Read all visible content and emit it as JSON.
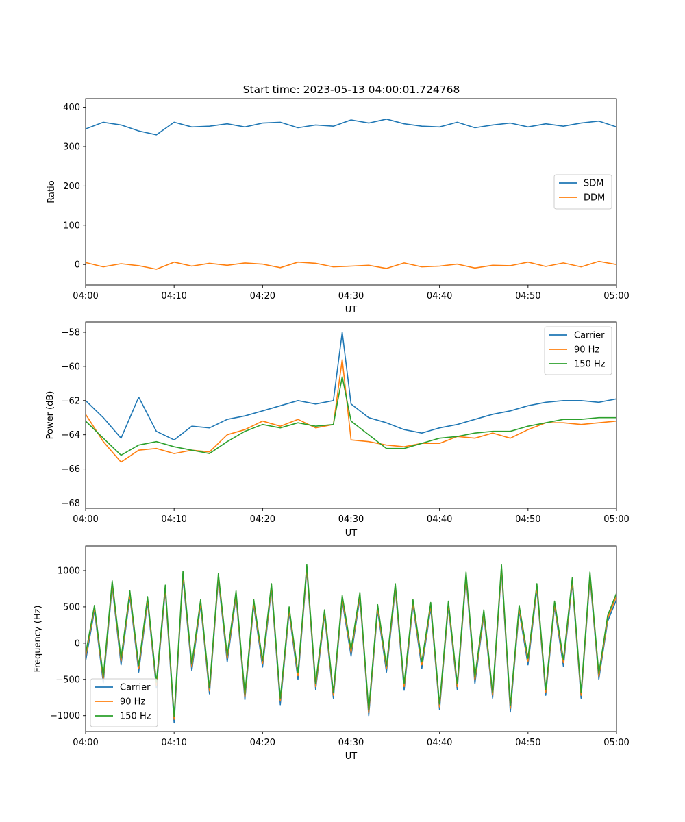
{
  "figure": {
    "title": "Start time: 2023-05-13 04:00:01.724768"
  },
  "colors": {
    "blue": "#1f77b4",
    "orange": "#ff7f0e",
    "green": "#2ca02c"
  },
  "chart_data": [
    {
      "type": "line",
      "title": "Start time: 2023-05-13 04:00:01.724768",
      "xlabel": "UT",
      "ylabel": "Ratio",
      "xlim": [
        "04:00",
        "05:00"
      ],
      "ylim": [
        -52,
        422
      ],
      "xticks": [
        "04:00",
        "04:10",
        "04:20",
        "04:30",
        "04:40",
        "04:50",
        "05:00"
      ],
      "yticks": [
        0,
        100,
        200,
        300,
        400
      ],
      "ytick_labels": [
        "0",
        "100",
        "200",
        "300",
        "400"
      ],
      "legend_position": "center-right",
      "x": [
        "04:00",
        "04:02",
        "04:04",
        "04:06",
        "04:08",
        "04:10",
        "04:12",
        "04:14",
        "04:16",
        "04:18",
        "04:20",
        "04:22",
        "04:24",
        "04:26",
        "04:28",
        "04:30",
        "04:32",
        "04:34",
        "04:36",
        "04:38",
        "04:40",
        "04:42",
        "04:44",
        "04:46",
        "04:48",
        "04:50",
        "04:52",
        "04:54",
        "04:56",
        "04:58",
        "05:00"
      ],
      "series": [
        {
          "name": "SDM",
          "color": "blue",
          "values": [
            345,
            362,
            355,
            340,
            330,
            362,
            350,
            352,
            358,
            350,
            360,
            362,
            348,
            355,
            352,
            368,
            360,
            370,
            358,
            352,
            350,
            362,
            348,
            355,
            360,
            350,
            358,
            352,
            360,
            365,
            350
          ]
        },
        {
          "name": "DDM",
          "color": "orange",
          "values": [
            5,
            -6,
            2,
            -3,
            -12,
            6,
            -4,
            3,
            -2,
            4,
            1,
            -8,
            6,
            3,
            -6,
            -4,
            -2,
            -10,
            4,
            -6,
            -4,
            1,
            -9,
            -2,
            -3,
            6,
            -5,
            4,
            -6,
            8,
            0
          ]
        }
      ]
    },
    {
      "type": "line",
      "xlabel": "UT",
      "ylabel": "Power (dB)",
      "xlim": [
        "04:00",
        "05:00"
      ],
      "ylim": [
        -68.3,
        -57.4
      ],
      "xticks": [
        "04:00",
        "04:10",
        "04:20",
        "04:30",
        "04:40",
        "04:50",
        "05:00"
      ],
      "yticks": [
        -68,
        -66,
        -64,
        -62,
        -60,
        -58
      ],
      "ytick_labels": [
        "−68",
        "−66",
        "−64",
        "−62",
        "−60",
        "−58"
      ],
      "legend_position": "upper-right",
      "x": [
        "04:00",
        "04:02",
        "04:04",
        "04:06",
        "04:08",
        "04:10",
        "04:12",
        "04:14",
        "04:16",
        "04:18",
        "04:20",
        "04:22",
        "04:24",
        "04:26",
        "04:28",
        "04:29",
        "04:30",
        "04:32",
        "04:34",
        "04:36",
        "04:38",
        "04:40",
        "04:42",
        "04:44",
        "04:46",
        "04:48",
        "04:50",
        "04:52",
        "04:54",
        "04:56",
        "04:58",
        "05:00"
      ],
      "series": [
        {
          "name": "Carrier",
          "color": "blue",
          "values": [
            -62.0,
            -63.0,
            -64.2,
            -61.8,
            -63.8,
            -64.3,
            -63.5,
            -63.6,
            -63.1,
            -62.9,
            -62.6,
            -62.3,
            -62.0,
            -62.2,
            -62.0,
            -58.0,
            -62.2,
            -63.0,
            -63.3,
            -63.7,
            -63.9,
            -63.6,
            -63.4,
            -63.1,
            -62.8,
            -62.6,
            -62.3,
            -62.1,
            -62.0,
            -62.0,
            -62.1,
            -61.9
          ]
        },
        {
          "name": "90 Hz",
          "color": "orange",
          "values": [
            -62.8,
            -64.4,
            -65.6,
            -64.9,
            -64.8,
            -65.1,
            -64.9,
            -65.0,
            -64.0,
            -63.7,
            -63.2,
            -63.5,
            -63.1,
            -63.6,
            -63.4,
            -59.6,
            -64.3,
            -64.4,
            -64.6,
            -64.7,
            -64.5,
            -64.5,
            -64.1,
            -64.2,
            -63.9,
            -64.2,
            -63.7,
            -63.3,
            -63.3,
            -63.4,
            -63.3,
            -63.2
          ]
        },
        {
          "name": "150 Hz",
          "color": "green",
          "values": [
            -63.2,
            -64.2,
            -65.2,
            -64.6,
            -64.4,
            -64.7,
            -64.9,
            -65.1,
            -64.4,
            -63.8,
            -63.4,
            -63.6,
            -63.3,
            -63.5,
            -63.4,
            -60.6,
            -63.2,
            -64.0,
            -64.8,
            -64.8,
            -64.5,
            -64.2,
            -64.1,
            -63.9,
            -63.8,
            -63.8,
            -63.5,
            -63.3,
            -63.1,
            -63.1,
            -63.0,
            -63.0
          ]
        }
      ]
    },
    {
      "type": "line",
      "xlabel": "UT",
      "ylabel": "Frequency (Hz)",
      "xlim": [
        "04:00",
        "05:00"
      ],
      "ylim": [
        -1220,
        1340
      ],
      "xticks": [
        "04:00",
        "04:10",
        "04:20",
        "04:30",
        "04:40",
        "04:50",
        "05:00"
      ],
      "yticks": [
        -1000,
        -500,
        0,
        500,
        1000
      ],
      "ytick_labels": [
        "−1000",
        "−500",
        "0",
        "500",
        "1000"
      ],
      "legend_position": "lower-left",
      "x": [
        "04:00",
        "04:01",
        "04:02",
        "04:03",
        "04:04",
        "04:05",
        "04:06",
        "04:07",
        "04:08",
        "04:09",
        "04:10",
        "04:11",
        "04:12",
        "04:13",
        "04:14",
        "04:15",
        "04:16",
        "04:17",
        "04:18",
        "04:19",
        "04:20",
        "04:21",
        "04:22",
        "04:23",
        "04:24",
        "04:25",
        "04:26",
        "04:27",
        "04:28",
        "04:29",
        "04:30",
        "04:31",
        "04:32",
        "04:33",
        "04:34",
        "04:35",
        "04:36",
        "04:37",
        "04:38",
        "04:39",
        "04:40",
        "04:41",
        "04:42",
        "04:43",
        "04:44",
        "04:45",
        "04:46",
        "04:47",
        "04:48",
        "04:49",
        "04:50",
        "04:51",
        "04:52",
        "04:53",
        "04:54",
        "04:55",
        "04:56",
        "04:57",
        "04:58",
        "04:59",
        "05:00"
      ],
      "series": [
        {
          "name": "Carrier",
          "color": "blue",
          "values": [
            -250,
            450,
            -550,
            780,
            -300,
            640,
            -400,
            560,
            -620,
            720,
            -1100,
            900,
            -380,
            520,
            -700,
            880,
            -260,
            640,
            -780,
            520,
            -330,
            740,
            -850,
            420,
            -500,
            1000,
            -640,
            380,
            -760,
            580,
            -180,
            620,
            -1000,
            450,
            -400,
            740,
            -650,
            520,
            -350,
            480,
            -920,
            500,
            -640,
            900,
            -560,
            380,
            -760,
            1000,
            -950,
            440,
            -300,
            740,
            -720,
            500,
            -320,
            820,
            -760,
            900,
            -500,
            300,
            600
          ]
        },
        {
          "name": "90 Hz",
          "color": "orange",
          "values": [
            -190,
            490,
            -500,
            820,
            -250,
            680,
            -350,
            600,
            -580,
            760,
            -1050,
            950,
            -330,
            560,
            -660,
            920,
            -210,
            680,
            -740,
            560,
            -280,
            780,
            -800,
            460,
            -450,
            1040,
            -600,
            420,
            -720,
            620,
            -130,
            660,
            -960,
            490,
            -350,
            780,
            -600,
            560,
            -300,
            520,
            -880,
            540,
            -600,
            940,
            -510,
            420,
            -720,
            1040,
            -900,
            480,
            -250,
            780,
            -680,
            540,
            -270,
            860,
            -720,
            940,
            -460,
            340,
            650
          ]
        },
        {
          "name": "150 Hz",
          "color": "green",
          "values": [
            -150,
            520,
            -460,
            860,
            -210,
            720,
            -310,
            640,
            -540,
            800,
            -1010,
            990,
            -290,
            600,
            -620,
            960,
            -170,
            720,
            -700,
            600,
            -240,
            820,
            -760,
            500,
            -410,
            1080,
            -560,
            460,
            -680,
            660,
            -90,
            700,
            -920,
            530,
            -310,
            820,
            -560,
            600,
            -260,
            560,
            -840,
            580,
            -560,
            980,
            -470,
            460,
            -680,
            1080,
            -860,
            520,
            -210,
            820,
            -640,
            580,
            -230,
            900,
            -680,
            980,
            -420,
            380,
            690
          ]
        }
      ]
    }
  ]
}
